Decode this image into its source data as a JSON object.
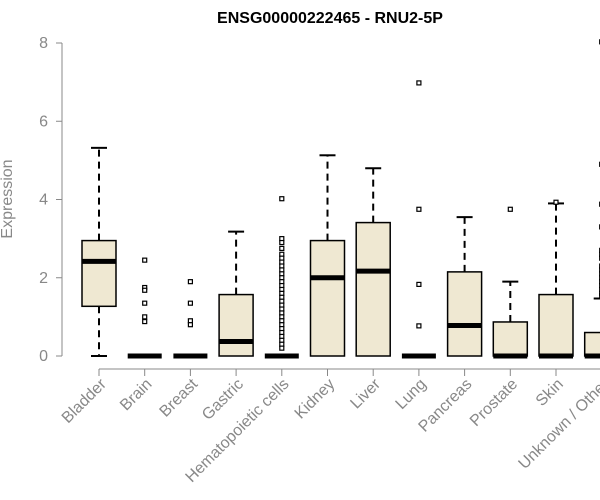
{
  "chart_data": {
    "type": "box",
    "title": "ENSG00000222465 - RNU2-5P",
    "ylabel": "Expression",
    "xlabel": "",
    "ylim": [
      0,
      8
    ],
    "yticks": [
      0,
      2,
      4,
      6,
      8
    ],
    "grid": false,
    "legend": "none",
    "box_fill": "#efe8d2",
    "box_stroke": "#000000",
    "axis_color": "#888888",
    "categories": [
      "Bladder",
      "Brain",
      "Breast",
      "Gastric",
      "Hematopoietic cells",
      "Kidney",
      "Liver",
      "Lung",
      "Pancreas",
      "Prostate",
      "Skin",
      "Unknown / Other"
    ],
    "boxes": [
      {
        "category": "Bladder",
        "whisker_low": 0.0,
        "q1": 1.27,
        "median": 2.42,
        "q3": 2.95,
        "whisker_high": 5.32,
        "outliers": []
      },
      {
        "category": "Brain",
        "whisker_low": 0.0,
        "q1": 0.0,
        "median": 0.0,
        "q3": 0.0,
        "whisker_high": 0.0,
        "outliers": [
          2.45,
          1.75,
          1.68,
          1.35,
          1.0,
          0.88
        ]
      },
      {
        "category": "Breast",
        "whisker_low": 0.0,
        "q1": 0.0,
        "median": 0.0,
        "q3": 0.0,
        "whisker_high": 0.0,
        "outliers": [
          1.9,
          1.35,
          0.9,
          0.8
        ]
      },
      {
        "category": "Gastric",
        "whisker_low": 0.0,
        "q1": 0.0,
        "median": 0.37,
        "q3": 1.57,
        "whisker_high": 3.18,
        "outliers": []
      },
      {
        "category": "Hematopoietic cells",
        "whisker_low": 0.0,
        "q1": 0.0,
        "median": 0.0,
        "q3": 0.0,
        "whisker_high": 0.0,
        "outliers": [
          4.02,
          3.0,
          2.9,
          2.75,
          2.6,
          2.5,
          2.4,
          2.3,
          2.2,
          2.1,
          2.0,
          1.9,
          1.8,
          1.7,
          1.6,
          1.5,
          1.4,
          1.3,
          1.2,
          1.1,
          1.0,
          0.9,
          0.8,
          0.7,
          0.6,
          0.5,
          0.4,
          0.3,
          0.2
        ]
      },
      {
        "category": "Kidney",
        "whisker_low": 0.0,
        "q1": 0.0,
        "median": 2.0,
        "q3": 2.95,
        "whisker_high": 5.13,
        "outliers": []
      },
      {
        "category": "Liver",
        "whisker_low": 0.0,
        "q1": 0.0,
        "median": 2.17,
        "q3": 3.41,
        "whisker_high": 4.8,
        "outliers": []
      },
      {
        "category": "Lung",
        "whisker_low": 0.0,
        "q1": 0.0,
        "median": 0.0,
        "q3": 0.0,
        "whisker_high": 0.0,
        "outliers": [
          6.98,
          3.75,
          1.83,
          0.77
        ]
      },
      {
        "category": "Pancreas",
        "whisker_low": 0.0,
        "q1": 0.0,
        "median": 0.78,
        "q3": 2.15,
        "whisker_high": 3.55,
        "outliers": []
      },
      {
        "category": "Prostate",
        "whisker_low": 0.0,
        "q1": 0.0,
        "median": 0.0,
        "q3": 0.87,
        "whisker_high": 1.9,
        "outliers": [
          3.75
        ]
      },
      {
        "category": "Skin",
        "whisker_low": 0.0,
        "q1": 0.0,
        "median": 0.0,
        "q3": 1.57,
        "whisker_high": 3.9,
        "outliers": [
          3.93
        ]
      },
      {
        "category": "Unknown / Other",
        "whisker_low": 0.0,
        "q1": 0.0,
        "median": 0.0,
        "q3": 0.6,
        "whisker_high": 1.47,
        "outliers": [
          8.03,
          4.9,
          3.88,
          3.3,
          2.7,
          2.6,
          2.5,
          2.3,
          2.2,
          2.1,
          2.0,
          1.9,
          1.8,
          1.7,
          1.6,
          1.55
        ]
      }
    ]
  }
}
